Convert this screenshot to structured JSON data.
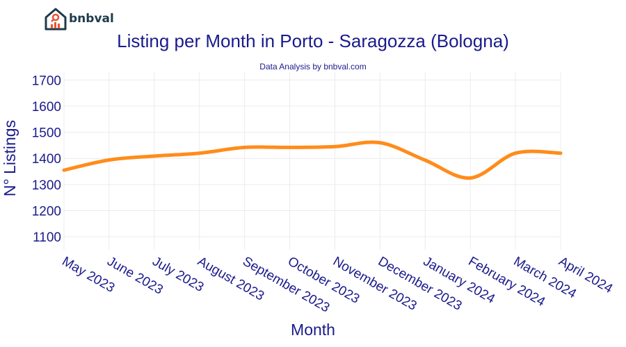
{
  "brand": {
    "name": "bnbval",
    "icon": "house-chart-icon",
    "accent": "#e8542f",
    "dark": "#1e3a4c"
  },
  "chart_data": {
    "type": "line",
    "title": "Listing per Month in Porto - Saragozza (Bologna)",
    "subtitle": "Data Analysis by bnbval.com",
    "xlabel": "Month",
    "ylabel": "N° Listings",
    "ylim": [
      1050,
      1730
    ],
    "yticks": [
      1100,
      1200,
      1300,
      1400,
      1500,
      1600,
      1700
    ],
    "grid": true,
    "categories": [
      "May 2023",
      "June 2023",
      "July 2023",
      "August 2023",
      "September 2023",
      "October 2023",
      "November 2023",
      "December 2023",
      "January 2024",
      "February 2024",
      "March 2024",
      "April 2024"
    ],
    "series": [
      {
        "name": "Listings",
        "color": "#ff8c1a",
        "values": [
          1355,
          1394,
          1409,
          1420,
          1442,
          1442,
          1445,
          1460,
          1393,
          1325,
          1420,
          1420
        ]
      }
    ]
  }
}
